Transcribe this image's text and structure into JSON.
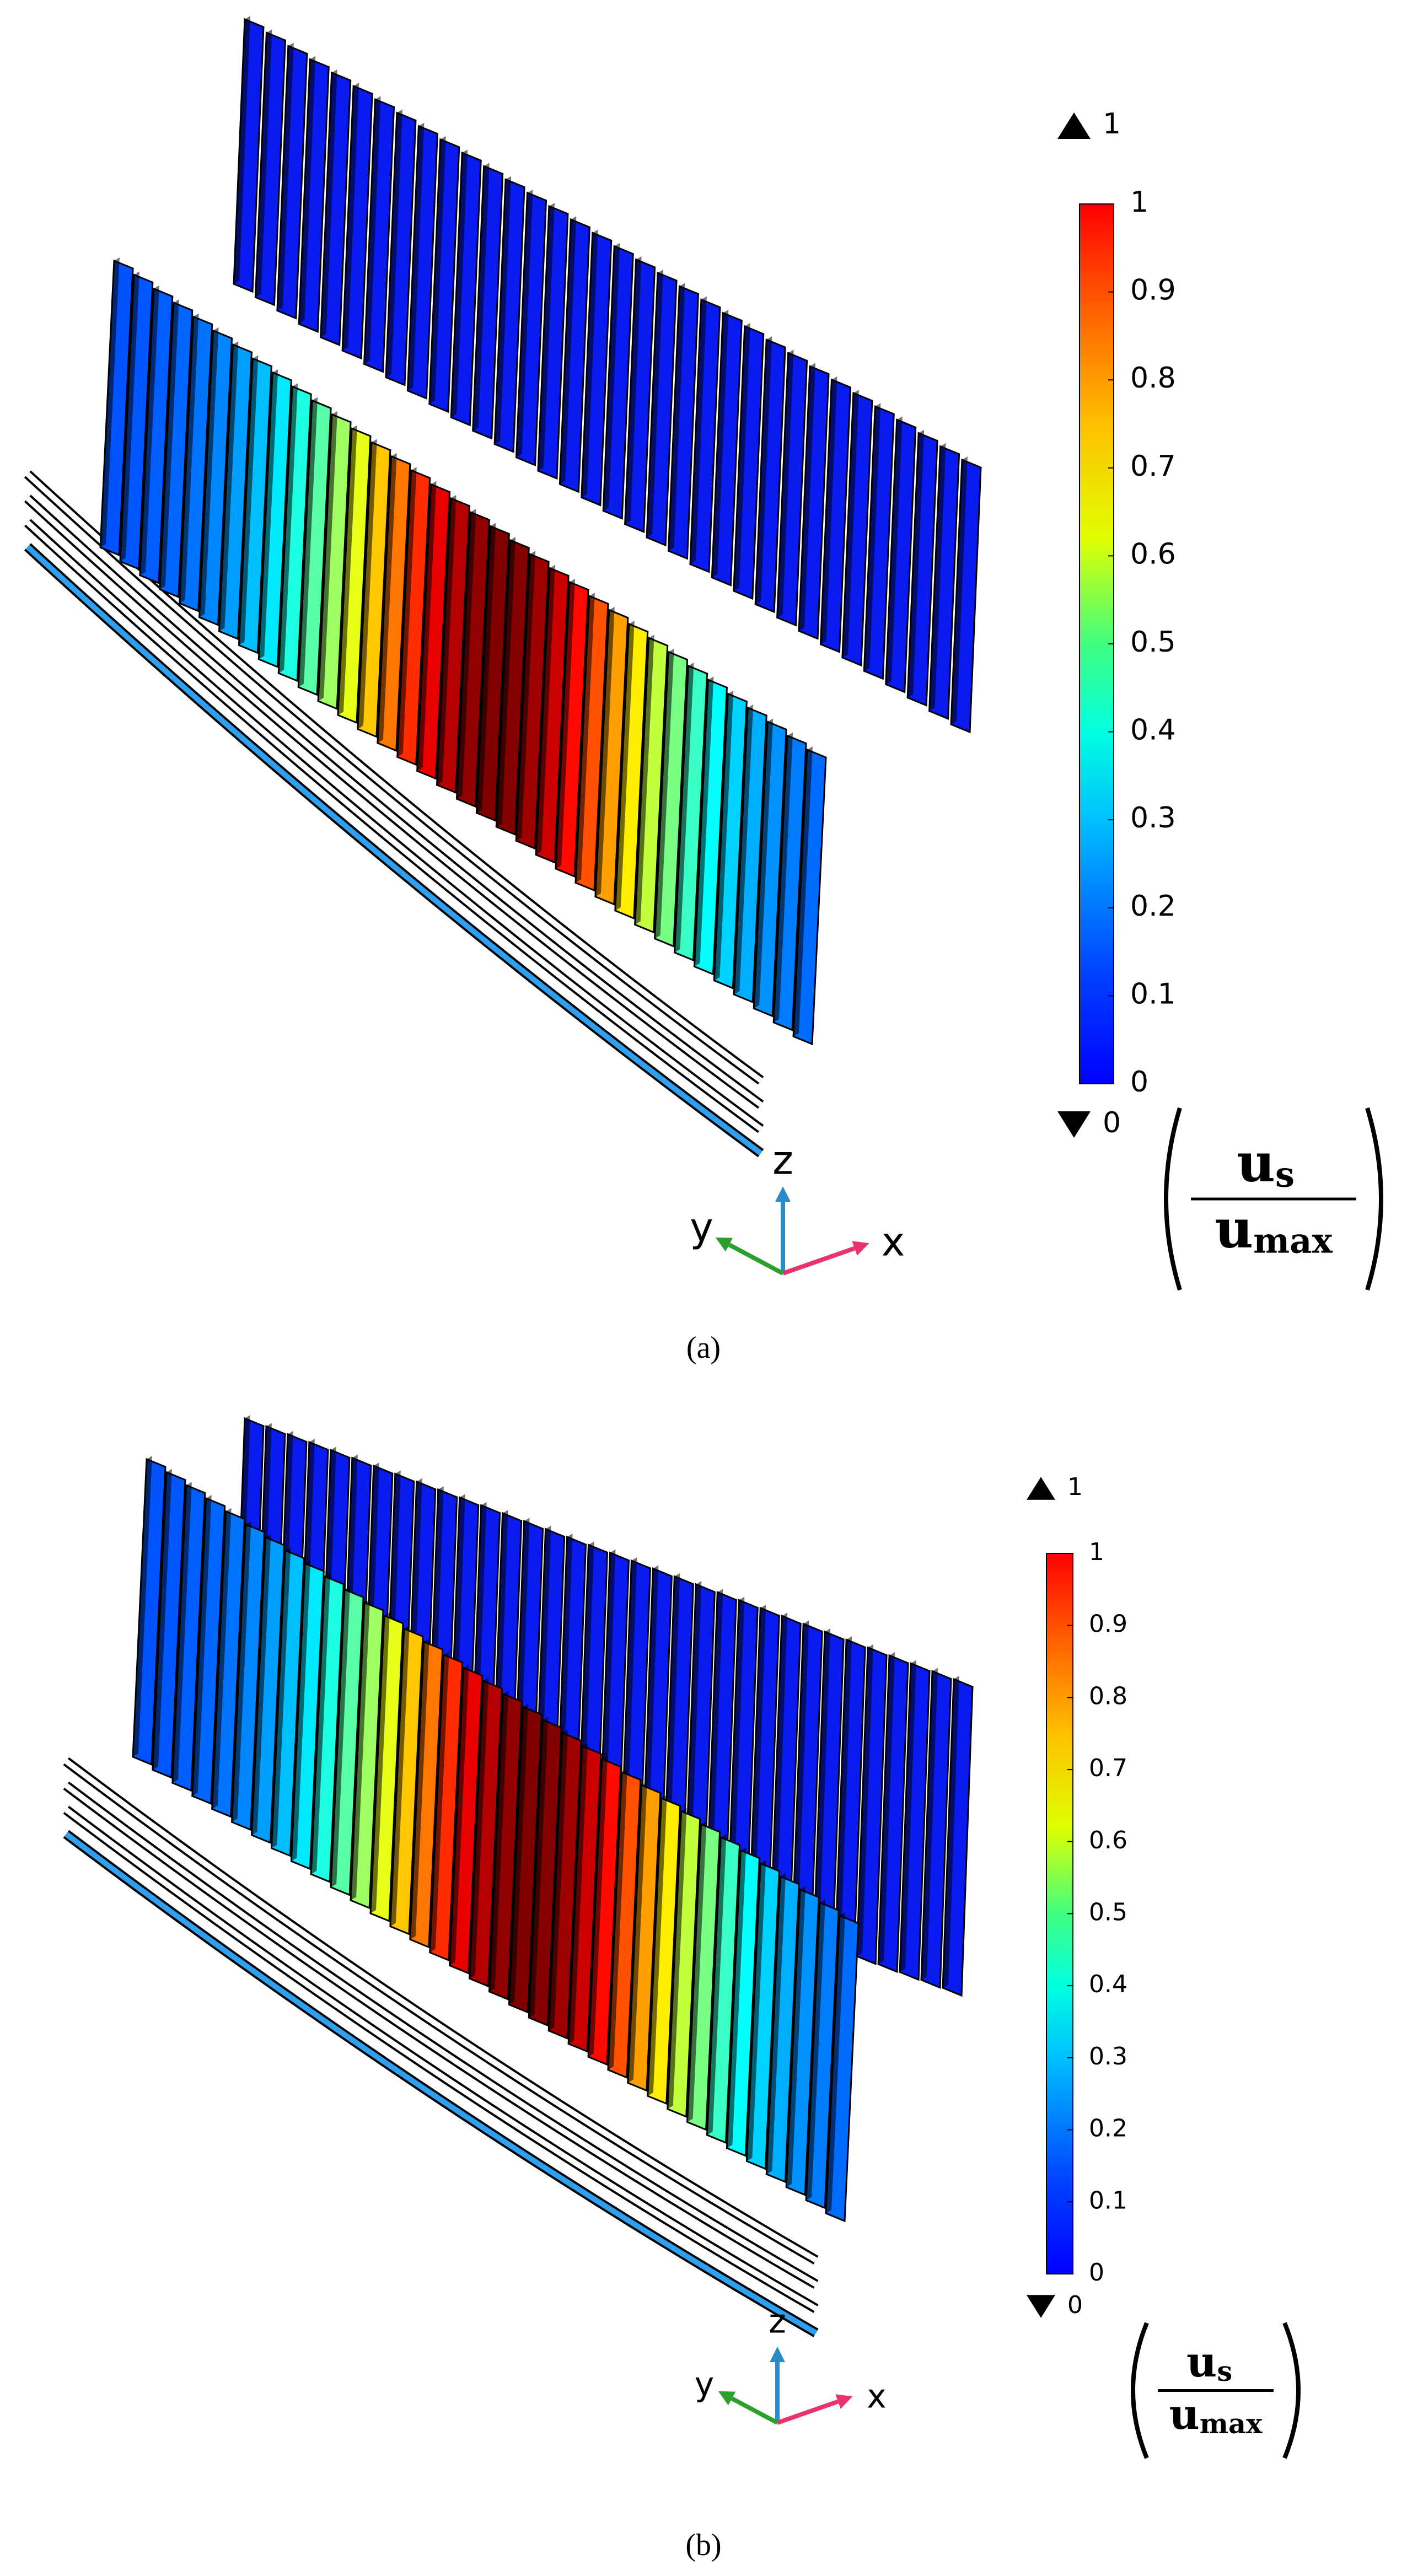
{
  "panels": [
    {
      "caption": "(a)",
      "colorbar": {
        "lim": [
          0,
          1
        ],
        "ticks": [
          0,
          0.1,
          0.2,
          0.3,
          0.4,
          0.5,
          0.6,
          0.7,
          0.8,
          0.9,
          1
        ],
        "max_label": "1",
        "min_label": "0"
      },
      "unit_label": {
        "numerator": "u",
        "numerator_sub": "s",
        "denominator": "u",
        "denominator_sub": "max"
      },
      "triad": {
        "x": "x",
        "y": "y",
        "z": "z"
      }
    },
    {
      "caption": "(b)",
      "colorbar": {
        "lim": [
          0,
          1
        ],
        "ticks": [
          0,
          0.1,
          0.2,
          0.3,
          0.4,
          0.5,
          0.6,
          0.7,
          0.8,
          0.9,
          1
        ],
        "max_label": "1",
        "min_label": "0"
      },
      "unit_label": {
        "numerator": "u",
        "numerator_sub": "s",
        "denominator": "u",
        "denominator_sub": "max"
      },
      "triad": {
        "x": "x",
        "y": "y",
        "z": "z"
      }
    }
  ]
}
